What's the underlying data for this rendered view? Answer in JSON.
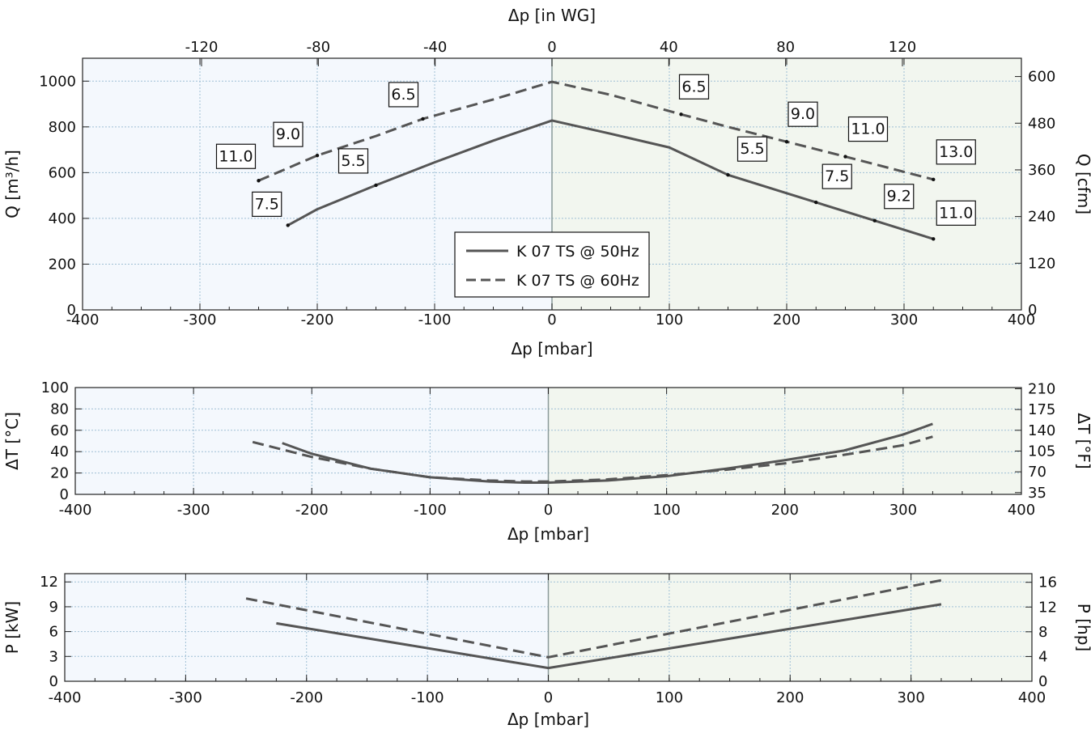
{
  "chart_data": [
    {
      "type": "line",
      "xlabel": "Δp [mbar]",
      "ylabel": "Q [m³/h]",
      "x2label": "Δp [in WG]",
      "y2label": "Q [cfm]",
      "xlim": [
        -400,
        400
      ],
      "ylim": [
        0,
        1100
      ],
      "y2lim": [
        0,
        647
      ],
      "xticks": [
        -400,
        -300,
        -200,
        -100,
        0,
        100,
        200,
        300,
        400
      ],
      "yticks": [
        0,
        200,
        400,
        600,
        800,
        1000
      ],
      "x2ticks": [
        -120,
        -80,
        -40,
        0,
        40,
        80,
        120
      ],
      "y2ticks": [
        0,
        120,
        240,
        360,
        480,
        600
      ],
      "grid": true,
      "legend_position": "bottom-center",
      "series": [
        {
          "name": "K 07 TS @ 50Hz",
          "style": "solid",
          "x": [
            -225,
            -200,
            -150,
            -100,
            -50,
            0,
            50,
            100,
            150,
            200,
            225,
            275,
            325
          ],
          "y": [
            370,
            440,
            545,
            645,
            740,
            828,
            770,
            710,
            590,
            510,
            470,
            390,
            310
          ]
        },
        {
          "name": "K 07 TS @ 60Hz",
          "style": "dashed",
          "x": [
            -250,
            -200,
            -150,
            -110,
            -50,
            0,
            50,
            110,
            150,
            200,
            250,
            325
          ],
          "y": [
            565,
            675,
            760,
            835,
            920,
            997,
            940,
            855,
            800,
            735,
            670,
            570
          ]
        }
      ],
      "annotations": [
        {
          "series": 0,
          "x": -225,
          "y": 370,
          "text": "7.5"
        },
        {
          "series": 0,
          "x": -150,
          "y": 545,
          "text": "5.5"
        },
        {
          "series": 0,
          "x": 150,
          "y": 590,
          "text": "5.5"
        },
        {
          "series": 0,
          "x": 225,
          "y": 470,
          "text": "7.5"
        },
        {
          "series": 0,
          "x": 275,
          "y": 390,
          "text": "9.2"
        },
        {
          "series": 0,
          "x": 325,
          "y": 310,
          "text": "11.0"
        },
        {
          "series": 1,
          "x": -250,
          "y": 565,
          "text": "11.0"
        },
        {
          "series": 1,
          "x": -200,
          "y": 675,
          "text": "9.0"
        },
        {
          "series": 1,
          "x": -110,
          "y": 835,
          "text": "6.5"
        },
        {
          "series": 1,
          "x": 110,
          "y": 855,
          "text": "6.5"
        },
        {
          "series": 1,
          "x": 200,
          "y": 735,
          "text": "9.0"
        },
        {
          "series": 1,
          "x": 250,
          "y": 670,
          "text": "11.0"
        },
        {
          "series": 1,
          "x": 325,
          "y": 570,
          "text": "13.0"
        }
      ]
    },
    {
      "type": "line",
      "xlabel": "Δp [mbar]",
      "ylabel": "ΔT [°C]",
      "y2label": "ΔT [°F]",
      "xlim": [
        -400,
        400
      ],
      "ylim": [
        0,
        100
      ],
      "xticks": [
        -400,
        -300,
        -200,
        -100,
        0,
        100,
        200,
        300,
        400
      ],
      "yticks": [
        0,
        20,
        40,
        60,
        80,
        100
      ],
      "y2ticks": [
        35,
        70,
        105,
        140,
        175,
        210
      ],
      "grid": true,
      "series": [
        {
          "name": "K 07 TS @ 50Hz",
          "style": "solid",
          "x": [
            -225,
            -200,
            -150,
            -100,
            -50,
            -20,
            0,
            50,
            100,
            150,
            200,
            250,
            300,
            325
          ],
          "y": [
            48,
            38,
            24,
            16,
            12,
            11,
            11,
            13,
            17,
            24,
            32,
            41,
            56,
            66
          ]
        },
        {
          "name": "K 07 TS @ 60Hz",
          "style": "dashed",
          "x": [
            -250,
            -200,
            -150,
            -100,
            -50,
            -20,
            0,
            50,
            100,
            150,
            200,
            250,
            300,
            325
          ],
          "y": [
            49,
            35,
            24,
            16,
            13,
            12,
            12,
            14,
            18,
            23,
            29,
            37,
            46,
            54
          ]
        }
      ]
    },
    {
      "type": "line",
      "xlabel": "Δp [mbar]",
      "ylabel": "P [kW]",
      "y2label": "P [hp]",
      "xlim": [
        -400,
        400
      ],
      "ylim": [
        0,
        13
      ],
      "y2lim": [
        0,
        17.4
      ],
      "xticks": [
        -400,
        -300,
        -200,
        -100,
        0,
        100,
        200,
        300,
        400
      ],
      "yticks": [
        0,
        3,
        6,
        9,
        12
      ],
      "y2ticks": [
        0,
        4,
        8,
        12,
        16
      ],
      "grid": true,
      "series": [
        {
          "name": "K 07 TS @ 50Hz",
          "style": "solid",
          "x": [
            -225,
            0,
            325
          ],
          "y": [
            7.0,
            1.6,
            9.3
          ]
        },
        {
          "name": "K 07 TS @ 60Hz",
          "style": "dashed",
          "x": [
            -250,
            0,
            325
          ],
          "y": [
            10.0,
            2.9,
            12.2
          ]
        }
      ]
    }
  ],
  "colors": {
    "line": "#555555",
    "left_bg": "#f4f8fd",
    "right_bg": "#f2f6ef",
    "grid": "#9fbfd5",
    "zero_line": "#8a9a9a"
  }
}
